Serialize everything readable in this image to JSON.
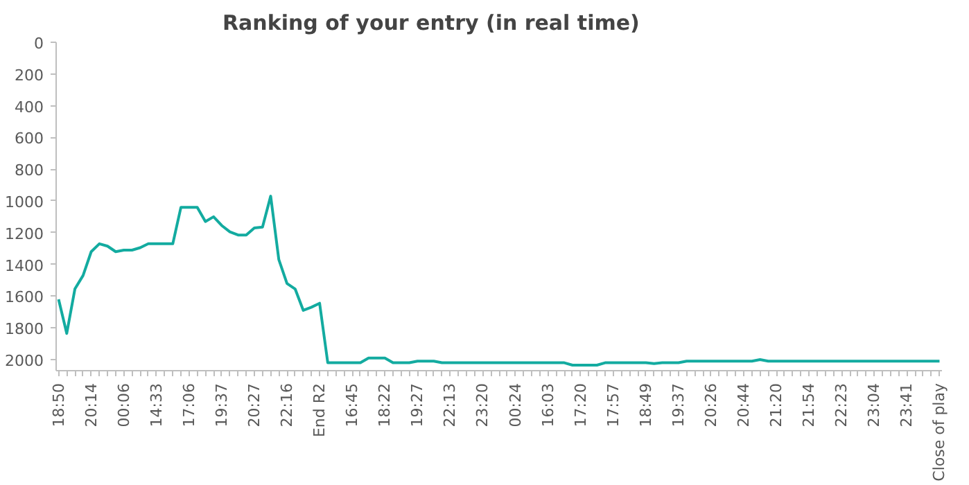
{
  "chart_data": {
    "type": "line",
    "title": "Ranking of your entry (in real time)",
    "categories": [
      "18:50",
      null,
      null,
      null,
      "20:14",
      null,
      null,
      null,
      "00:06",
      null,
      null,
      null,
      "14:33",
      null,
      null,
      null,
      "17:06",
      null,
      null,
      null,
      "19:37",
      null,
      null,
      null,
      "20:27",
      null,
      null,
      null,
      "22:16",
      null,
      null,
      null,
      "End R2",
      null,
      null,
      null,
      "16:45",
      null,
      null,
      null,
      "18:22",
      null,
      null,
      null,
      "19:27",
      null,
      null,
      null,
      "22:13",
      null,
      null,
      null,
      "23:20",
      null,
      null,
      null,
      "00:24",
      null,
      null,
      null,
      "16:03",
      null,
      null,
      null,
      "17:20",
      null,
      null,
      null,
      "17:57",
      null,
      null,
      null,
      "18:49",
      null,
      null,
      null,
      "19:37",
      null,
      null,
      null,
      "20:26",
      null,
      null,
      null,
      "20:44",
      null,
      null,
      null,
      "21:20",
      null,
      null,
      null,
      "21:54",
      null,
      null,
      null,
      "22:23",
      null,
      null,
      null,
      "23:04",
      null,
      null,
      null,
      "23:41",
      null,
      null,
      null,
      "Close of play"
    ],
    "series": [
      {
        "color": "#13aba0",
        "values": [
          1620,
          1835,
          1555,
          1470,
          1320,
          1270,
          1285,
          1320,
          1310,
          1310,
          1295,
          1270,
          1270,
          1270,
          1270,
          1040,
          1040,
          1040,
          1130,
          1100,
          1155,
          1195,
          1215,
          1215,
          1170,
          1165,
          970,
          1370,
          1520,
          1555,
          1690,
          1670,
          1645,
          2020,
          2020,
          2020,
          2020,
          2020,
          1990,
          1990,
          1990,
          2020,
          2020,
          2020,
          2010,
          2010,
          2010,
          2020,
          2020,
          2020,
          2020,
          2020,
          2020,
          2020,
          2020,
          2020,
          2020,
          2020,
          2020,
          2020,
          2020,
          2020,
          2020,
          2035,
          2035,
          2035,
          2035,
          2020,
          2020,
          2020,
          2020,
          2020,
          2020,
          2025,
          2020,
          2020,
          2020,
          2010,
          2010,
          2010,
          2010,
          2010,
          2010,
          2010,
          2010,
          2010,
          2000,
          2010,
          2010,
          2010,
          2010,
          2010,
          2010,
          2010,
          2010,
          2010,
          2010,
          2010,
          2010,
          2010,
          2010,
          2010,
          2010,
          2010,
          2010,
          2010,
          2010,
          2010,
          2010
        ]
      }
    ],
    "ylim": [
      2070,
      0
    ],
    "yticks": [
      0,
      200,
      400,
      600,
      800,
      1000,
      1200,
      1400,
      1600,
      1800,
      2000
    ],
    "grid": false,
    "marker": "none",
    "line_style": "solid"
  }
}
